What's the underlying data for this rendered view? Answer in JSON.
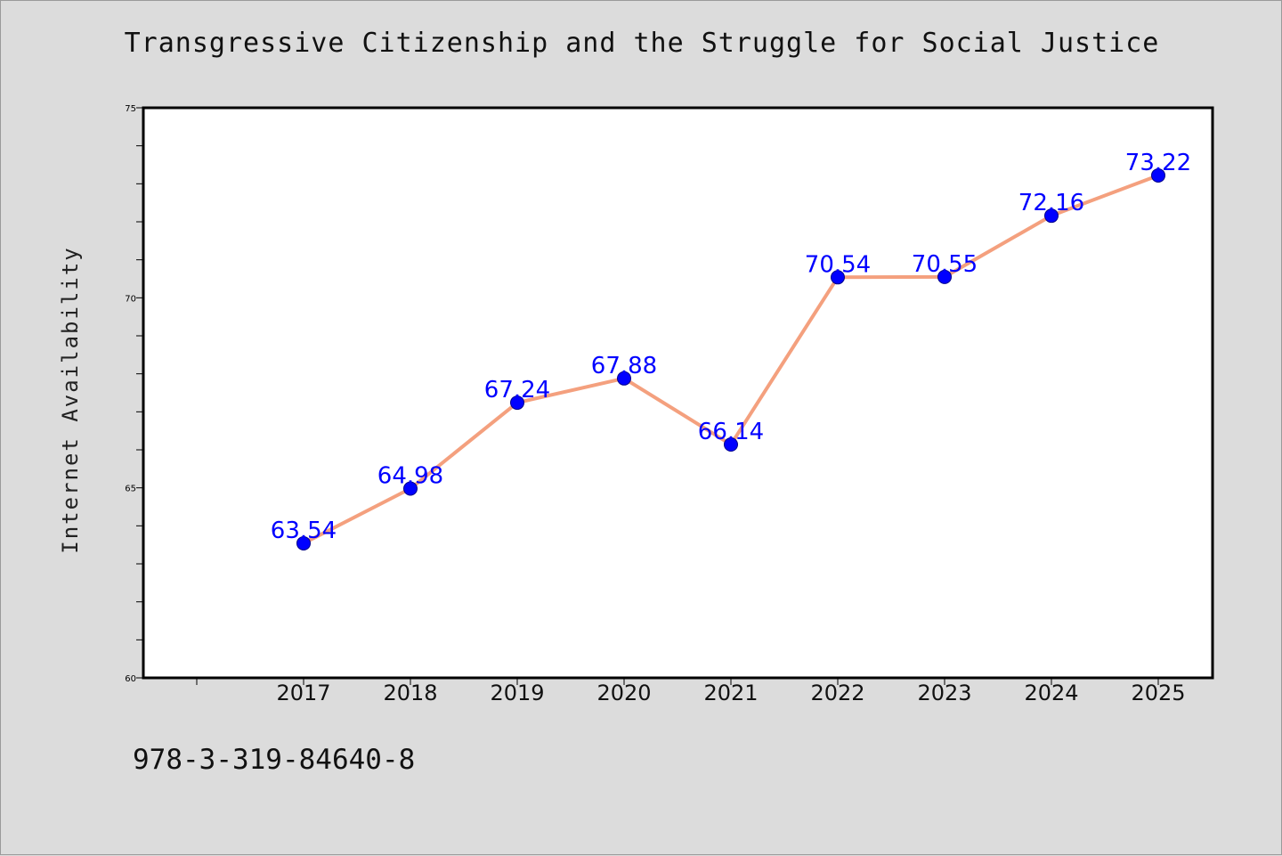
{
  "chart_data": {
    "type": "line",
    "title": "Transgressive Citizenship and the Struggle for Social Justice",
    "xlabel": "",
    "ylabel": "Internet Availability",
    "categories": [
      "2017",
      "2018",
      "2019",
      "2020",
      "2021",
      "2022",
      "2023",
      "2024",
      "2025"
    ],
    "values": [
      63.54,
      64.98,
      67.24,
      67.88,
      66.14,
      70.54,
      70.55,
      72.16,
      73.22
    ],
    "value_labels": [
      "63.54",
      "64.98",
      "67.24",
      "67.88",
      "66.14",
      "70.54",
      "70.55",
      "72.16",
      "73.22"
    ],
    "ylim": [
      60,
      75
    ],
    "y_ticks": [
      "60",
      "65",
      "70",
      "75"
    ],
    "grid": false,
    "legend": "none",
    "colors": {
      "line": "#f4a07e",
      "marker": "#0000ff",
      "data_label": "#0000ff",
      "background": "#dcdcdc",
      "plot_area": "#ffffff"
    }
  },
  "footer": {
    "isbn": "978-3-319-84640-8"
  }
}
